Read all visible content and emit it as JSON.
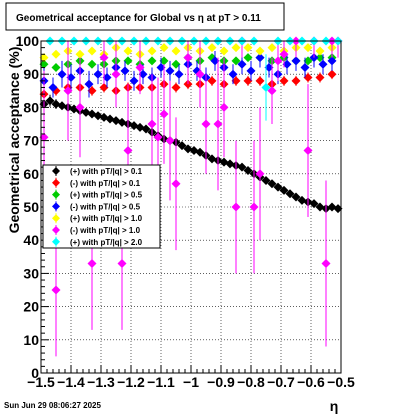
{
  "timestamp": "Sun Jun 29 08:06:27 2025",
  "chart_data": {
    "type": "scatter",
    "title": "Geometrical acceptance for Global vs   η  at pT > 0.11",
    "xlabel": "η",
    "ylabel": "Geometrical acceptance (%)",
    "xlim": [
      -1.5,
      -0.5
    ],
    "ylim": [
      0,
      100
    ],
    "x_ticks": [
      -1.5,
      -1.4,
      -1.3,
      -1.2,
      -1.1,
      -1.0,
      -0.9,
      -0.8,
      -0.7,
      -0.6,
      -0.5
    ],
    "x_tick_labels": [
      "−1.5",
      "−1.4",
      "−1.3",
      "−1.2",
      "−1.1",
      "−1",
      "−0.9",
      "−0.8",
      "−0.7",
      "−0.6",
      "−0.5"
    ],
    "y_ticks": [
      0,
      10,
      20,
      30,
      40,
      50,
      60,
      70,
      80,
      90,
      100
    ],
    "y_tick_labels": [
      "0",
      "10",
      "20",
      "30",
      "40",
      "50",
      "60",
      "70",
      "80",
      "90",
      "100"
    ],
    "grid": true,
    "legend_position": "middle-left",
    "series": [
      {
        "name": "(+) with pT/|q| > 0.1",
        "color": "#000000",
        "x": [
          -1.49,
          -1.47,
          -1.45,
          -1.43,
          -1.41,
          -1.39,
          -1.37,
          -1.35,
          -1.33,
          -1.31,
          -1.29,
          -1.27,
          -1.25,
          -1.23,
          -1.21,
          -1.19,
          -1.17,
          -1.15,
          -1.13,
          -1.11,
          -1.09,
          -1.07,
          -1.05,
          -1.03,
          -1.01,
          -0.99,
          -0.97,
          -0.95,
          -0.93,
          -0.91,
          -0.89,
          -0.87,
          -0.85,
          -0.83,
          -0.81,
          -0.79,
          -0.77,
          -0.75,
          -0.73,
          -0.71,
          -0.69,
          -0.67,
          -0.65,
          -0.63,
          -0.61,
          -0.59,
          -0.57,
          -0.55,
          -0.53,
          -0.51
        ],
        "y": [
          81,
          82,
          81,
          80.5,
          80,
          79.5,
          79,
          78.5,
          78,
          77.5,
          77,
          76.5,
          76,
          75.5,
          75,
          74.5,
          74,
          73.5,
          72.5,
          71.5,
          70.5,
          70,
          69.5,
          68.5,
          67.5,
          67,
          66.5,
          65.5,
          64.5,
          64,
          63.5,
          63,
          62.5,
          62,
          61,
          60,
          59,
          58,
          57,
          56,
          55,
          54,
          53,
          52,
          51.5,
          51,
          50,
          49.5,
          50,
          49.5
        ],
        "err": [
          2,
          1.8,
          1.5,
          1.2,
          1,
          1,
          1,
          1,
          1,
          1,
          1,
          1,
          1,
          1,
          1,
          1,
          1,
          1,
          1,
          1,
          1,
          1,
          1,
          1,
          1,
          1,
          1,
          1,
          1,
          1,
          1,
          1,
          1,
          1,
          1,
          1,
          1,
          1,
          1,
          1,
          1,
          1,
          1,
          1,
          1,
          1,
          1,
          1,
          1,
          1
        ]
      },
      {
        "name": "(-) with pT/|q| > 0.1",
        "color": "#ff0000",
        "x": [
          -1.49,
          -1.45,
          -1.41,
          -1.37,
          -1.33,
          -1.29,
          -1.25,
          -1.21,
          -1.17,
          -1.13,
          -1.09,
          -1.05,
          -1.01,
          -0.97,
          -0.93,
          -0.89,
          -0.85,
          -0.81,
          -0.77,
          -0.73,
          -0.69,
          -0.65,
          -0.61,
          -0.57,
          -0.53
        ],
        "y": [
          84,
          85,
          86,
          86,
          85,
          86,
          85,
          86,
          86,
          86,
          87,
          86,
          87,
          87,
          88,
          87,
          88,
          88,
          88,
          87,
          88,
          88,
          89,
          89,
          90
        ],
        "err": [
          1.5,
          1.5,
          1.5,
          1.5,
          1.5,
          1.5,
          1.5,
          1.5,
          1.5,
          1.5,
          1.5,
          1.5,
          1.5,
          1.5,
          1.5,
          1.5,
          1.5,
          1.5,
          1.5,
          1.5,
          1.5,
          1.5,
          1.5,
          1.5,
          1.5
        ]
      },
      {
        "name": "(+) with pT/|q| > 0.5",
        "color": "#00cc00",
        "x": [
          -1.49,
          -1.45,
          -1.41,
          -1.37,
          -1.33,
          -1.29,
          -1.25,
          -1.21,
          -1.17,
          -1.13,
          -1.09,
          -1.05,
          -1.01,
          -0.97,
          -0.93,
          -0.89,
          -0.85,
          -0.81,
          -0.77,
          -0.73,
          -0.69,
          -0.65,
          -0.61,
          -0.57,
          -0.53
        ],
        "y": [
          93,
          92,
          93,
          94,
          93,
          93,
          94,
          94,
          93,
          94,
          94,
          93,
          95,
          94,
          95,
          94,
          94,
          95,
          95,
          94,
          95,
          94,
          94,
          95,
          95
        ],
        "err": [
          1,
          1,
          1,
          1,
          1,
          1,
          1,
          1,
          1,
          1,
          1,
          1,
          1,
          1,
          1,
          1,
          1,
          1,
          1,
          1,
          1,
          1,
          1,
          1,
          1
        ]
      },
      {
        "name": "(-) with pT/|q| > 0.5",
        "color": "#0000ff",
        "x": [
          -1.49,
          -1.46,
          -1.43,
          -1.4,
          -1.37,
          -1.34,
          -1.31,
          -1.28,
          -1.25,
          -1.22,
          -1.19,
          -1.16,
          -1.13,
          -1.1,
          -1.07,
          -1.04,
          -1.01,
          -0.98,
          -0.95,
          -0.92,
          -0.89,
          -0.86,
          -0.83,
          -0.8,
          -0.77,
          -0.74,
          -0.71,
          -0.68,
          -0.65,
          -0.62,
          -0.59,
          -0.56,
          -0.53
        ],
        "y": [
          88,
          86,
          90,
          89,
          91,
          87,
          90,
          89,
          92,
          91,
          88,
          90,
          89,
          92,
          91,
          90,
          93,
          91,
          89,
          94,
          92,
          90,
          93,
          91,
          95,
          92,
          90,
          93,
          94,
          92,
          95,
          93,
          94
        ],
        "err": [
          4,
          3,
          4,
          4,
          3,
          4,
          3,
          3,
          4,
          3,
          3,
          3,
          3,
          3,
          3,
          3,
          3,
          3,
          3,
          3,
          3,
          3,
          3,
          3,
          3,
          3,
          3,
          3,
          3,
          3,
          3,
          3,
          3
        ]
      },
      {
        "name": "(+) with pT/|q| > 1.0",
        "color": "#ffff00",
        "x": [
          -1.49,
          -1.45,
          -1.41,
          -1.37,
          -1.33,
          -1.29,
          -1.25,
          -1.21,
          -1.17,
          -1.13,
          -1.09,
          -1.05,
          -1.01,
          -0.97,
          -0.93,
          -0.89,
          -0.85,
          -0.81,
          -0.77,
          -0.73,
          -0.69,
          -0.65,
          -0.61,
          -0.57,
          -0.53
        ],
        "y": [
          95,
          96,
          97,
          96,
          97,
          96,
          98,
          97,
          96,
          97,
          98,
          97,
          98,
          97,
          98,
          97,
          98,
          98,
          97,
          98,
          97,
          98,
          98,
          97,
          98
        ],
        "err": [
          1,
          1,
          1,
          1,
          1,
          1,
          1,
          1,
          1,
          1,
          1,
          1,
          1,
          1,
          1,
          1,
          1,
          1,
          1,
          1,
          1,
          1,
          1,
          1,
          1
        ]
      },
      {
        "name": "(-) with pT/|q| > 1.0",
        "color": "#ff00ff",
        "x": [
          -1.49,
          -1.45,
          -1.41,
          -1.37,
          -1.33,
          -1.29,
          -1.25,
          -1.23,
          -1.21,
          -1.17,
          -1.13,
          -1.11,
          -1.09,
          -1.07,
          -1.05,
          -1.01,
          -0.97,
          -0.95,
          -0.91,
          -0.89,
          -0.85,
          -0.83,
          -0.79,
          -0.77,
          -0.73,
          -0.71,
          -0.69,
          -0.65,
          -0.61,
          -0.59,
          -0.55,
          -0.53,
          -0.51
        ],
        "y": [
          71,
          25,
          85,
          80,
          33,
          95,
          90,
          33,
          67,
          92,
          75,
          71,
          78,
          70,
          57,
          95,
          90,
          75,
          75,
          80,
          50,
          100,
          50,
          60,
          85,
          94,
          96,
          100,
          67,
          100,
          33,
          100,
          100
        ],
        "err": [
          20,
          20,
          15,
          15,
          20,
          8,
          10,
          20,
          20,
          8,
          15,
          18,
          15,
          18,
          20,
          8,
          10,
          15,
          20,
          15,
          20,
          5,
          20,
          20,
          10,
          6,
          4,
          5,
          20,
          5,
          25,
          5,
          5
        ]
      },
      {
        "name": "(+) with pT/|q| > 2.0",
        "color": "#00ffff",
        "x": [
          -1.47,
          -1.43,
          -1.39,
          -1.35,
          -1.31,
          -1.27,
          -1.23,
          -1.19,
          -1.15,
          -1.11,
          -1.07,
          -1.03,
          -0.99,
          -0.95,
          -0.91,
          -0.87,
          -0.83,
          -0.79,
          -0.75,
          -0.71,
          -0.67,
          -0.63,
          -0.59,
          -0.55,
          -0.51
        ],
        "y": [
          100,
          100,
          100,
          100,
          100,
          100,
          100,
          100,
          100,
          100,
          100,
          100,
          100,
          100,
          100,
          100,
          100,
          100,
          86,
          100,
          100,
          100,
          100,
          100,
          100
        ],
        "err": [
          1,
          1,
          1,
          1,
          1,
          1,
          1,
          1,
          1,
          1,
          1,
          1,
          1,
          1,
          1,
          1,
          1,
          1,
          10,
          1,
          1,
          1,
          1,
          1,
          1
        ]
      }
    ]
  }
}
